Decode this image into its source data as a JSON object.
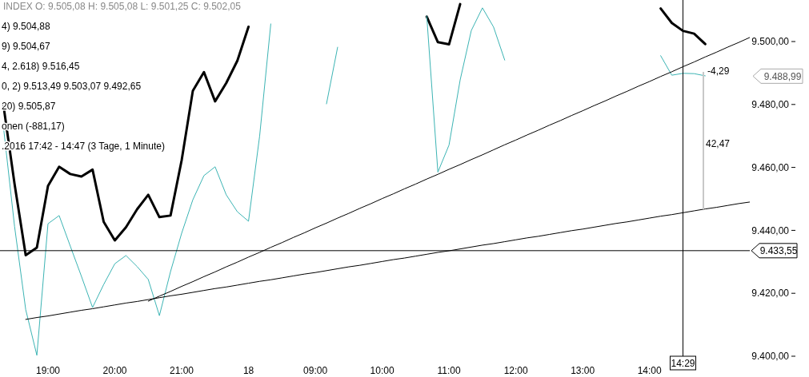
{
  "chart_data": {
    "type": "line",
    "categories": [
      null,
      null,
      null,
      null,
      "19:00",
      null,
      null,
      null,
      null,
      null,
      "20:00",
      null,
      null,
      null,
      null,
      null,
      "21:00",
      null,
      null,
      null,
      null,
      null,
      "18",
      null,
      null,
      null,
      null,
      null,
      "09:00",
      null,
      null,
      null,
      null,
      null,
      "10:00",
      null,
      null,
      null,
      null,
      null,
      "11:00",
      null,
      null,
      null,
      null,
      null,
      "12:00",
      null,
      null,
      null,
      null,
      null,
      "13:00",
      null,
      null,
      null,
      null,
      null,
      "14:00",
      null,
      null,
      "14:29",
      null,
      null,
      null,
      null,
      null,
      null
    ],
    "series": [
      {
        "color": "#000000",
        "values": [
          9479.8,
          9454.7,
          9432.1,
          9434.5,
          9454.1,
          9460.2,
          9457.9,
          9457.1,
          9459.3,
          9442.7,
          9436.8,
          9441.0,
          9446.7,
          9451.3,
          9444.2,
          9444.7,
          9462.3,
          9484.3,
          9490.3,
          9481.0,
          9486.8,
          9493.9,
          9504.7,
          null,
          null,
          null,
          null,
          null,
          null,
          null,
          null,
          null,
          null,
          null,
          null,
          null,
          null,
          null,
          9507.9,
          9499.8,
          9499.1,
          9511.9,
          null,
          null,
          null,
          null,
          null,
          null,
          null,
          null,
          null,
          null,
          null,
          null,
          null,
          null,
          null,
          null,
          null,
          9510.5,
          9505.9,
          9503.4,
          9502.5,
          9499.2,
          null,
          null,
          null,
          null
        ]
      },
      {
        "color": "#3cb4b4",
        "values": [
          9472.9,
          9441.2,
          9414.8,
          9400.3,
          9442.1,
          9444.7,
          9435.0,
          9425.4,
          9415.5,
          9422.8,
          9429.4,
          9432.0,
          9428.5,
          9424.4,
          9412.9,
          9426.9,
          9439.1,
          9449.7,
          9457.4,
          9460.2,
          9451.3,
          9445.9,
          9442.9,
          9470.0,
          9505.6,
          null,
          null,
          null,
          null,
          9480.2,
          9498.2,
          null,
          null,
          null,
          null,
          null,
          null,
          null,
          9508.1,
          9458.5,
          9467.1,
          9487.8,
          9503.5,
          9510.7,
          9504.6,
          9494.1,
          null,
          null,
          null,
          null,
          null,
          null,
          null,
          null,
          null,
          null,
          null,
          null,
          null,
          9495.5,
          9489.3,
          9489.9,
          9489.8,
          9489.1,
          null,
          null,
          null,
          null
        ]
      },
      {
        "color": "#000000",
        "values": [
          null,
          null,
          9411.7,
          9412.3,
          9412.8,
          9413.4,
          9414.0,
          9414.6,
          9415.1,
          9415.7,
          9416.3,
          9416.9,
          9417.4,
          9418.0,
          9418.6,
          9419.2,
          9419.7,
          9420.3,
          9420.9,
          9421.5,
          9422.0,
          9422.6,
          9423.2,
          9423.8,
          9424.3,
          9424.9,
          9425.5,
          9426.1,
          9426.6,
          9427.2,
          9427.8,
          9428.4,
          9428.9,
          9429.5,
          9430.1,
          9430.7,
          9431.2,
          9431.8,
          9432.4,
          9433.0,
          9433.5,
          9434.1,
          9434.7,
          9435.3,
          9435.8,
          9436.4,
          9437.0,
          9437.6,
          9438.1,
          9438.7,
          9439.3,
          9439.9,
          9440.4,
          9441.0,
          9441.6,
          9442.2,
          9442.7,
          9443.3,
          9443.9,
          9444.5,
          9445.0,
          9445.6,
          9446.2,
          9446.8,
          9447.3,
          9447.9,
          9448.5,
          9449.0
        ]
      },
      {
        "color": "#000000",
        "values": [
          null,
          null,
          null,
          null,
          null,
          null,
          null,
          null,
          null,
          null,
          null,
          null,
          null,
          9417.5,
          9419.1,
          9420.6,
          9422.2,
          9423.7,
          9425.3,
          9426.8,
          9428.4,
          9429.9,
          9431.5,
          9433.0,
          9434.6,
          9436.1,
          9437.7,
          9439.2,
          9440.8,
          9442.3,
          9443.9,
          9445.4,
          9447.0,
          9448.5,
          9450.1,
          9451.6,
          9453.2,
          9454.7,
          9456.3,
          9457.8,
          9459.4,
          9460.9,
          9462.5,
          9464.0,
          9465.6,
          9467.2,
          9468.7,
          9470.3,
          9471.8,
          9473.4,
          9474.9,
          9476.5,
          9478.0,
          9479.6,
          9481.1,
          9482.7,
          9484.2,
          9485.8,
          9487.3,
          9488.9,
          9490.4,
          9492.0,
          9493.5,
          9495.1,
          9496.6,
          9498.2,
          9499.7,
          9501.3
        ]
      }
    ],
    "ylim": [
      9393.4,
      9513.2
    ],
    "yticks": [
      {
        "value": 9400,
        "label": "9.400,00"
      },
      {
        "value": 9420,
        "label": "9.420,00"
      },
      {
        "value": 9440,
        "label": "9.440,00"
      },
      {
        "value": 9460,
        "label": "9.460,00"
      },
      {
        "value": 9480,
        "label": "9.480,00"
      },
      {
        "value": 9500,
        "label": "9.500,00"
      }
    ],
    "ref_lines": [
      {
        "axis": "y",
        "value": 9433.55,
        "label": "9.433,55",
        "color": "#000000"
      },
      {
        "axis": "x",
        "value": "14:29",
        "color": "#000000"
      }
    ],
    "annotations": [
      "INDEX  O: 9.505,08  H: 9.505,08  L: 9.501,25  C: 9.502,05",
      "4)  9.504,88",
      "9)  9.504,67",
      "4, 2.618)  9.516,45",
      "0, 2)  9.513,49  9.503,07  9.492,65",
      "20)  9.505,87",
      "onen (-881,17)",
      ".2016 17:42 - 14:47 (3 Tage, 1 Minute)",
      "-4,29",
      "42,47",
      "9.488,99"
    ],
    "grid": false,
    "marker": "none",
    "line_style": "solid"
  }
}
